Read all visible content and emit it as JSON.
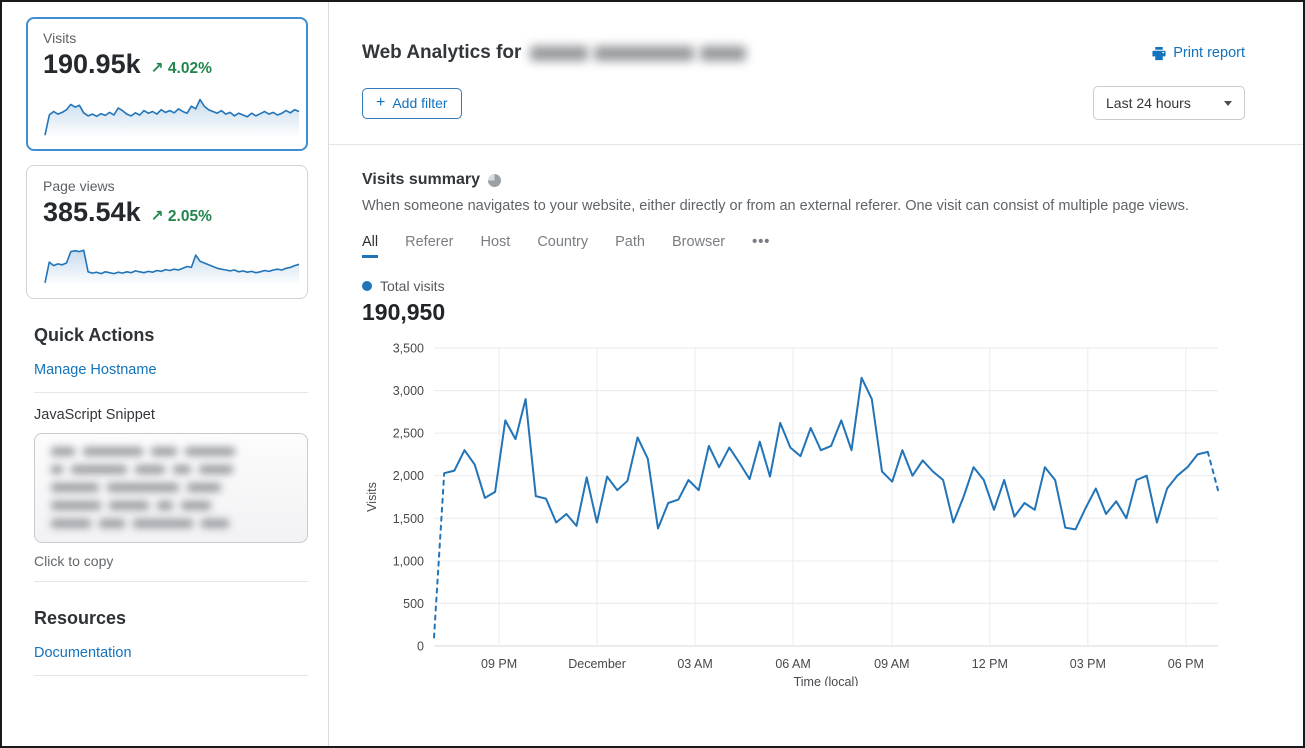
{
  "sidebar": {
    "cards": [
      {
        "label": "Visits",
        "value": "190.95k",
        "delta_arrow": "↗",
        "delta": "4.02%",
        "selected": true,
        "sparkline": [
          4,
          50,
          58,
          52,
          56,
          62,
          74,
          68,
          72,
          55,
          48,
          52,
          47,
          53,
          49,
          56,
          50,
          66,
          60,
          52,
          48,
          55,
          50,
          60,
          54,
          58,
          52,
          62,
          56,
          60,
          55,
          64,
          58,
          54,
          70,
          64,
          85,
          70,
          62,
          58,
          54,
          60,
          52,
          56,
          48,
          54,
          50,
          46,
          54,
          48,
          53,
          58,
          52,
          56,
          50,
          54,
          60,
          55,
          62,
          58
        ]
      },
      {
        "label": "Page views",
        "value": "385.54k",
        "delta_arrow": "↗",
        "delta": "2.05%",
        "selected": false,
        "sparkline": [
          5,
          52,
          44,
          48,
          46,
          50,
          76,
          78,
          76,
          79,
          30,
          27,
          29,
          26,
          30,
          28,
          26,
          29,
          27,
          30,
          28,
          32,
          30,
          28,
          31,
          29,
          33,
          31,
          35,
          33,
          36,
          34,
          38,
          42,
          40,
          68,
          54,
          50,
          46,
          42,
          38,
          36,
          34,
          32,
          34,
          30,
          32,
          29,
          31,
          28,
          30,
          33,
          31,
          34,
          36,
          34,
          38,
          40,
          44,
          47
        ]
      }
    ],
    "quick_actions": {
      "heading": "Quick Actions",
      "links": [
        "Manage Hostname"
      ],
      "snippet_label": "JavaScript Snippet",
      "copy_hint": "Click to copy"
    },
    "resources": {
      "heading": "Resources",
      "links": [
        "Documentation"
      ]
    }
  },
  "header": {
    "title_prefix": "Web Analytics for",
    "print_label": "Print report",
    "add_filter_plus": "+",
    "add_filter_label": "Add filter",
    "time_range": "Last 24 hours"
  },
  "summary": {
    "title": "Visits summary",
    "description": "When someone navigates to your website, either directly or from an external referer. One visit can consist of multiple page views.",
    "tabs": [
      "All",
      "Referer",
      "Host",
      "Country",
      "Path",
      "Browser"
    ],
    "tabs_more": "•••",
    "active_tab": "All",
    "legend_label": "Total visits",
    "total_value": "190,950"
  },
  "colors": {
    "chart_line": "#2274b8",
    "accent_blue": "#1373BC",
    "positive_green": "#21854c",
    "selected_card_border": "#3d8fd1",
    "gridline": "#e9eaec"
  },
  "chart_data": {
    "type": "line",
    "title": "Visits summary",
    "xlabel": "Time (local)",
    "ylabel": "Visits",
    "ylim": [
      0,
      3500
    ],
    "grid": true,
    "legend_position": "top-left",
    "dashed_head_points": 2,
    "dashed_tail_points": 2,
    "yticks": [
      {
        "v": 0,
        "label": "0"
      },
      {
        "v": 500,
        "label": "500"
      },
      {
        "v": 1000,
        "label": "1,000"
      },
      {
        "v": 1500,
        "label": "1,500"
      },
      {
        "v": 2000,
        "label": "2,000"
      },
      {
        "v": 2500,
        "label": "2,500"
      },
      {
        "v": 3000,
        "label": "3,000"
      },
      {
        "v": 3500,
        "label": "3,500"
      }
    ],
    "xticks": [
      {
        "label": "09 PM",
        "f": 0.083
      },
      {
        "label": "December",
        "f": 0.208
      },
      {
        "label": "03 AM",
        "f": 0.333
      },
      {
        "label": "06 AM",
        "f": 0.458
      },
      {
        "label": "09 AM",
        "f": 0.584
      },
      {
        "label": "12 PM",
        "f": 0.709
      },
      {
        "label": "03 PM",
        "f": 0.834
      },
      {
        "label": "06 PM",
        "f": 0.959
      }
    ],
    "series": [
      {
        "name": "Total visits",
        "values": [
          100,
          2030,
          2060,
          2300,
          2130,
          1740,
          1810,
          2650,
          2430,
          2900,
          1760,
          1730,
          1450,
          1550,
          1410,
          1980,
          1450,
          1990,
          1830,
          1940,
          2450,
          2200,
          1380,
          1680,
          1720,
          1950,
          1830,
          2350,
          2100,
          2330,
          2150,
          1960,
          2400,
          1990,
          2620,
          2330,
          2230,
          2560,
          2300,
          2350,
          2650,
          2300,
          3150,
          2900,
          2050,
          1930,
          2300,
          2000,
          2180,
          2050,
          1950,
          1450,
          1750,
          2100,
          1950,
          1600,
          1950,
          1520,
          1680,
          1600,
          2100,
          1950,
          1390,
          1370,
          1620,
          1850,
          1550,
          1700,
          1500,
          1950,
          2000,
          1450,
          1850,
          2000,
          2100,
          2250,
          2280,
          1830
        ]
      }
    ]
  }
}
